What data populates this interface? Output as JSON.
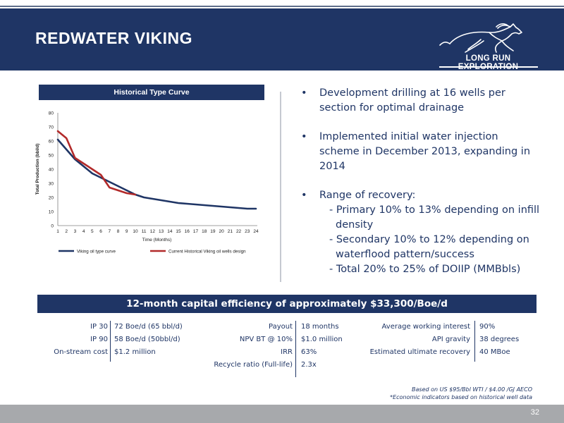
{
  "slide": {
    "title": "REDWATER VIKING",
    "page_number": "32"
  },
  "logo": {
    "text": "LONG RUN EXPLORATION",
    "icon": "horse-icon"
  },
  "chart": {
    "title": "Historical Type Curve",
    "ylabel": "Total Production (bbl/d)",
    "xlabel": "Time (Months)",
    "legend": [
      "Viking oil type curve",
      "Current Historical Viking oil wells design"
    ]
  },
  "chart_data": {
    "type": "line",
    "title": "Historical Type Curve",
    "xlabel": "Time (Months)",
    "ylabel": "Total Production (bbl/d)",
    "xlim": [
      1,
      24
    ],
    "ylim": [
      0,
      80
    ],
    "yticks": [
      0,
      10,
      20,
      30,
      40,
      50,
      60,
      70,
      80
    ],
    "xticks": [
      1,
      2,
      3,
      4,
      5,
      6,
      7,
      8,
      9,
      10,
      11,
      12,
      13,
      14,
      15,
      16,
      17,
      18,
      19,
      20,
      21,
      22,
      23,
      24
    ],
    "grid": false,
    "legend_position": "bottom",
    "series": [
      {
        "name": "Viking oil type curve",
        "color": "#1f3565",
        "x": [
          1,
          2,
          3,
          4,
          5,
          6,
          7,
          8,
          9,
          10,
          11,
          12,
          13,
          14,
          15,
          16,
          17,
          18,
          19,
          20,
          21,
          22,
          23,
          24
        ],
        "y": [
          61,
          54,
          47,
          42,
          37,
          34,
          31,
          28,
          25,
          22,
          20,
          19,
          18,
          17,
          16,
          15.5,
          15,
          14.5,
          14,
          13.5,
          13,
          12.5,
          12,
          12
        ]
      },
      {
        "name": "Current Historical Viking oil wells design",
        "color": "#b22a2a",
        "x": [
          1,
          2,
          3,
          4,
          5,
          6,
          7,
          8,
          9,
          10
        ],
        "y": [
          67,
          62,
          48,
          44,
          40,
          36,
          27,
          25,
          23,
          22
        ]
      }
    ]
  },
  "bullets": [
    {
      "text": "Development drilling at 16 wells per section for optimal drainage",
      "lines": [
        "Development drilling at 16 wells per",
        "section for optimal drainage"
      ]
    },
    {
      "lines": [
        "Implemented initial water injection",
        "scheme in December 2013, expanding in",
        "2014"
      ]
    },
    {
      "lines": [
        "Range of recovery:"
      ]
    }
  ],
  "recovery": [
    {
      "lines": [
        "- Primary 10% to 13% depending on infill",
        "density"
      ]
    },
    {
      "lines": [
        "- Secondary 10% to 12% depending on",
        "waterflood pattern/success"
      ]
    },
    {
      "lines": [
        "- Total 20% to 25% of DOIIP (MMBbls)"
      ]
    }
  ],
  "banner": {
    "text": "12-month capital efficiency of approximately $33,300/Boe/d"
  },
  "metrics": {
    "col1": [
      {
        "label": "IP 30",
        "value": "72 Boe/d  (65 bbl/d)"
      },
      {
        "label": "IP 90",
        "value": "58 Boe/d (50bbl/d)"
      },
      {
        "label": "On-stream cost",
        "value": "$1.2 million"
      }
    ],
    "col2": [
      {
        "label": "Payout",
        "value": "18 months"
      },
      {
        "label": "NPV BT @ 10%",
        "value": "$1.0 million"
      },
      {
        "label": "IRR",
        "value": "63%"
      },
      {
        "label": "Recycle ratio (Full-life)",
        "value": "2.3x"
      }
    ],
    "col3": [
      {
        "label": "Average working interest",
        "value": "90%"
      },
      {
        "label": "API gravity",
        "value": "38 degrees"
      },
      {
        "label": "Estimated ultimate recovery",
        "value": "40 MBoe"
      }
    ]
  },
  "footnote": {
    "line1": "Based on US $95/Bbl WTI / $4.00 /GJ AECO",
    "line2": "*Economic indicators based on historical well data"
  },
  "colors": {
    "navy": "#1f3565",
    "red": "#b22a2a",
    "footer_gray": "#a7a9ac"
  }
}
